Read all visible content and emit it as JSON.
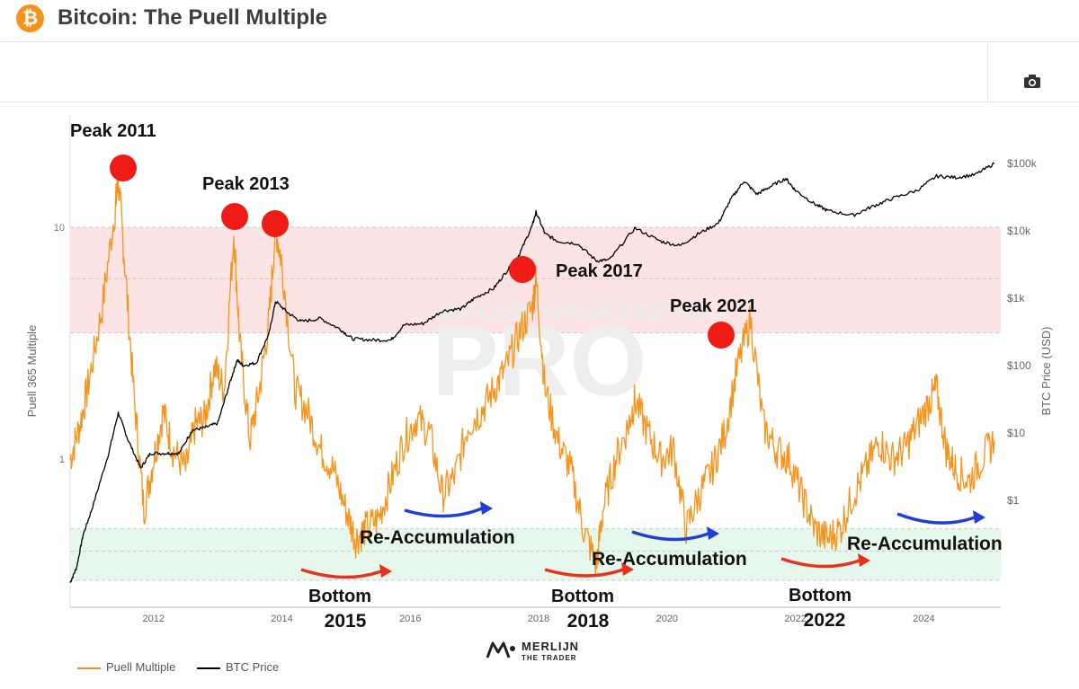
{
  "header": {
    "title": "Bitcoin: The Puell Multiple",
    "badge": "₿"
  },
  "legend": {
    "puell": "Puell Multiple",
    "btc": "BTC Price"
  },
  "brand": {
    "name": "MERLIJN",
    "sub": "THE TRADER",
    "watermark": "BITCOIN MAGAZINE PRO"
  },
  "colors": {
    "puell": "#f7931a",
    "btc": "#000000",
    "upper_zone": "#fde4e4",
    "lower_zone": "#e6f7ec",
    "annotation_red": "#ee1c14",
    "arrow_blue": "#1f3fd8",
    "arrow_red": "#e8321e"
  },
  "icons": {
    "toolbar": "camera-icon",
    "header": "bitcoin-icon"
  },
  "chart_data": {
    "type": "line",
    "title": "Bitcoin: The Puell Multiple",
    "ylabel_left": "Puell 365 Multiple",
    "ylabel_right": "BTC Price (USD)",
    "y_left_ticks": [
      "10",
      "1"
    ],
    "y_right_ticks": [
      "$100k",
      "$10k",
      "$1k",
      "$100",
      "$10",
      "$1"
    ],
    "x_ticks": [
      "2012",
      "2014",
      "2016",
      "2018",
      "2020",
      "2022",
      "2024"
    ],
    "xlim": [
      2010.7,
      2025.2
    ],
    "y_left_log_range": [
      0.25,
      20
    ],
    "y_right_log_range": [
      0.1,
      300000
    ],
    "bands": [
      {
        "name": "upper",
        "from": 3.5,
        "to": 10
      },
      {
        "name": "lower",
        "from": 0.3,
        "to": 0.5
      }
    ],
    "series": [
      {
        "name": "Puell Multiple",
        "axis": "left",
        "x": [
          2010.7,
          2010.85,
          2011.0,
          2011.2,
          2011.4,
          2011.45,
          2011.55,
          2011.7,
          2011.85,
          2012.0,
          2012.15,
          2012.3,
          2012.5,
          2012.65,
          2012.8,
          2012.95,
          2013.1,
          2013.25,
          2013.35,
          2013.5,
          2013.65,
          2013.8,
          2013.9,
          2014.0,
          2014.2,
          2014.4,
          2014.6,
          2014.8,
          2015.0,
          2015.15,
          2015.3,
          2015.5,
          2015.7,
          2015.9,
          2016.1,
          2016.3,
          2016.5,
          2016.7,
          2016.9,
          2017.1,
          2017.3,
          2017.5,
          2017.7,
          2017.9,
          2017.96,
          2018.1,
          2018.3,
          2018.5,
          2018.7,
          2018.9,
          2019.0,
          2019.2,
          2019.4,
          2019.5,
          2019.7,
          2019.9,
          2020.1,
          2020.3,
          2020.5,
          2020.7,
          2020.9,
          2021.1,
          2021.3,
          2021.5,
          2021.7,
          2021.9,
          2022.1,
          2022.3,
          2022.5,
          2022.7,
          2022.9,
          2023.1,
          2023.3,
          2023.5,
          2023.7,
          2023.9,
          2024.1,
          2024.2,
          2024.35,
          2024.5,
          2024.7,
          2024.9,
          2025.1
        ],
        "values": [
          1.0,
          1.4,
          2.2,
          4.5,
          12.0,
          16.0,
          7.0,
          1.8,
          0.6,
          1.0,
          1.6,
          1.1,
          0.9,
          1.4,
          1.5,
          2.5,
          2.0,
          9.5,
          3.0,
          1.2,
          2.0,
          4.0,
          10.0,
          7.0,
          2.0,
          1.6,
          1.1,
          0.9,
          0.6,
          0.45,
          0.5,
          0.55,
          0.8,
          1.2,
          1.5,
          1.3,
          0.7,
          0.85,
          1.4,
          1.6,
          2.0,
          2.5,
          3.5,
          4.5,
          6.0,
          2.0,
          1.2,
          0.9,
          0.5,
          0.35,
          0.6,
          1.0,
          1.4,
          1.8,
          1.3,
          1.0,
          1.1,
          0.5,
          0.7,
          0.9,
          1.3,
          2.5,
          4.0,
          1.4,
          1.1,
          1.0,
          0.7,
          0.5,
          0.45,
          0.5,
          0.7,
          0.9,
          1.2,
          1.0,
          1.1,
          1.4,
          1.8,
          2.0,
          1.1,
          0.9,
          0.8,
          1.0,
          1.2
        ]
      },
      {
        "name": "BTC Price",
        "axis": "right",
        "x": [
          2010.7,
          2010.8,
          2010.9,
          2011.05,
          2011.3,
          2011.45,
          2011.6,
          2011.8,
          2011.95,
          2012.2,
          2012.4,
          2012.6,
          2012.8,
          2013.0,
          2013.2,
          2013.3,
          2013.4,
          2013.6,
          2013.8,
          2013.9,
          2014.1,
          2014.3,
          2014.6,
          2014.9,
          2015.1,
          2015.4,
          2015.7,
          2015.9,
          2016.2,
          2016.5,
          2016.8,
          2017.0,
          2017.3,
          2017.5,
          2017.7,
          2017.9,
          2017.96,
          2018.1,
          2018.3,
          2018.6,
          2018.9,
          2019.1,
          2019.5,
          2019.9,
          2020.2,
          2020.5,
          2020.8,
          2021.0,
          2021.2,
          2021.4,
          2021.6,
          2021.85,
          2022.0,
          2022.3,
          2022.5,
          2022.9,
          2023.2,
          2023.5,
          2023.9,
          2024.2,
          2024.5,
          2024.8,
          2025.1
        ],
        "values": [
          0.06,
          0.1,
          0.3,
          0.8,
          5,
          20,
          8,
          3,
          5,
          5,
          5,
          11,
          12,
          14,
          60,
          120,
          100,
          110,
          300,
          900,
          600,
          450,
          500,
          350,
          250,
          240,
          240,
          400,
          420,
          650,
          700,
          1000,
          1400,
          2500,
          4500,
          12000,
          19000,
          9000,
          7000,
          6500,
          3600,
          3700,
          11000,
          7000,
          6000,
          9200,
          13000,
          30000,
          55000,
          35000,
          45000,
          60000,
          40000,
          25000,
          20000,
          17000,
          23000,
          30000,
          40000,
          65000,
          62000,
          68000,
          100000
        ]
      }
    ],
    "annotations": [
      "Peak 2011",
      "Peak 2013",
      "Peak 2017",
      "Peak 2021",
      "Re-Accumulation",
      "Re-Accumulation",
      "Re-Accumulation",
      "Bottom",
      "2015",
      "Bottom",
      "2018",
      "Bottom",
      "2022"
    ]
  }
}
